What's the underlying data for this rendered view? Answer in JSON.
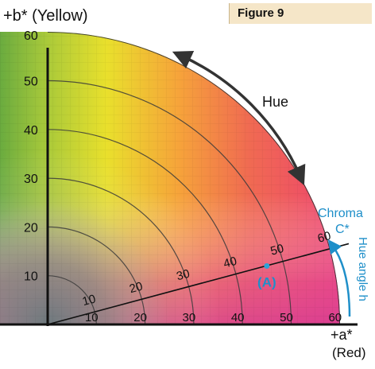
{
  "figure_label": "Figure 9",
  "axes": {
    "b_axis_label": "+b* (Yellow)",
    "a_axis_label": "+a*",
    "a_axis_sublabel": "(Red)",
    "b_ticks": [
      "10",
      "20",
      "30",
      "40",
      "50",
      "60"
    ],
    "a_ticks": [
      "10",
      "20",
      "30",
      "40",
      "50",
      "60"
    ],
    "chroma_ticks": [
      "10",
      "20",
      "30",
      "40",
      "50",
      "60"
    ]
  },
  "annotations": {
    "hue": "Hue",
    "chroma": "Chroma",
    "chroma_symbol": "C*",
    "hue_angle": "Hue angle h",
    "point_label": "(A)"
  },
  "chart_data": {
    "type": "scatter",
    "points": [
      {
        "label": "(A)",
        "a": 45,
        "b": 12
      }
    ],
    "chroma_line_angle_deg": 15,
    "xlim": [
      0,
      60
    ],
    "ylim": [
      0,
      60
    ],
    "grid": true
  },
  "colors": {
    "axis": "#111111",
    "rings": "#3a3a3a",
    "annotation_blue": "#1e8fc9",
    "hue_arrow": "#333333",
    "point": "#2aa3d8"
  }
}
